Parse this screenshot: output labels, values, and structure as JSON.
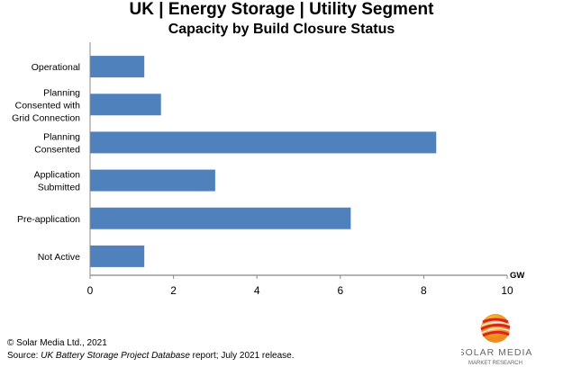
{
  "chart_data": {
    "type": "bar",
    "orientation": "horizontal",
    "title": "UK | Energy Storage | Utility Segment",
    "subtitle": "Capacity by Build Closure Status",
    "categories": [
      "Operational",
      "Planning Consented with Grid Connection",
      "Planning Consented",
      "Application Submitted",
      "Pre-application",
      "Not Active"
    ],
    "category_lines": [
      [
        "Operational"
      ],
      [
        "Planning",
        "Consented with",
        "Grid Connection"
      ],
      [
        "Planning",
        "Consented"
      ],
      [
        "Application",
        "Submitted"
      ],
      [
        "Pre-application"
      ],
      [
        "Not Active"
      ]
    ],
    "values": [
      1.3,
      1.7,
      8.3,
      3.0,
      6.25,
      1.3
    ],
    "xlabel": "GW",
    "xlim": [
      0,
      10
    ],
    "xticks": [
      0,
      2,
      4,
      6,
      8,
      10
    ],
    "grid": false,
    "bar_color": "#4f81bd"
  },
  "footer": {
    "copyright": "© Solar Media Ltd., 2021",
    "source_prefix": "Source: ",
    "source_title": "UK Battery Storage Project Database",
    "source_suffix": " report; July 2021 release."
  },
  "logo": {
    "line1": "SOLAR MEDIA",
    "line2": "MARKET RESEARCH"
  }
}
